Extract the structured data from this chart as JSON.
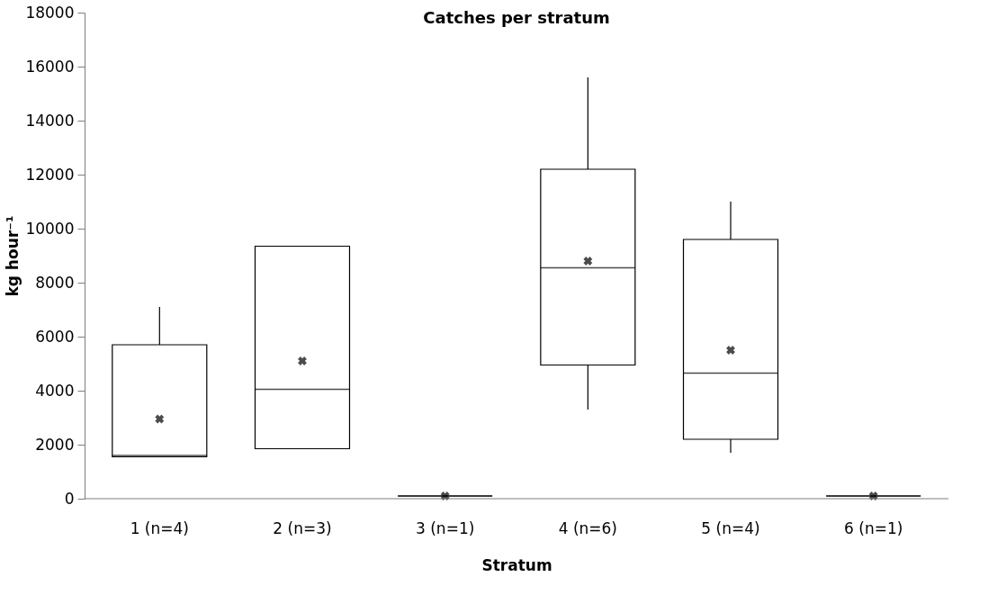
{
  "chart_data": {
    "type": "box",
    "title": "Catches per stratum",
    "xlabel": "Stratum",
    "ylabel": "kg hour⁻¹",
    "categories": [
      "1 (n=4)",
      "2 (n=3)",
      "3 (n=1)",
      "4 (n=6)",
      "5 (n=4)",
      "6 (n=1)"
    ],
    "boxes": [
      {
        "low": 1550,
        "q1": 1550,
        "median": 1600,
        "q3": 5700,
        "high": 7100,
        "mean": 2950
      },
      {
        "low": 1850,
        "q1": 1850,
        "median": 4050,
        "q3": 9350,
        "high": 9350,
        "mean": 5100
      },
      {
        "low": 100,
        "q1": 100,
        "median": 100,
        "q3": 100,
        "high": 100,
        "mean": 100
      },
      {
        "low": 3300,
        "q1": 4950,
        "median": 8550,
        "q3": 12200,
        "high": 15600,
        "mean": 8800
      },
      {
        "low": 1700,
        "q1": 2200,
        "median": 4650,
        "q3": 9600,
        "high": 11000,
        "mean": 5500
      },
      {
        "low": 100,
        "q1": 100,
        "median": 100,
        "q3": 100,
        "high": 100,
        "mean": 100
      }
    ],
    "ylim": [
      0,
      18000
    ],
    "yticks": [
      0,
      2000,
      4000,
      6000,
      8000,
      10000,
      12000,
      14000,
      16000,
      18000
    ],
    "marker": "cross",
    "grid": false
  }
}
